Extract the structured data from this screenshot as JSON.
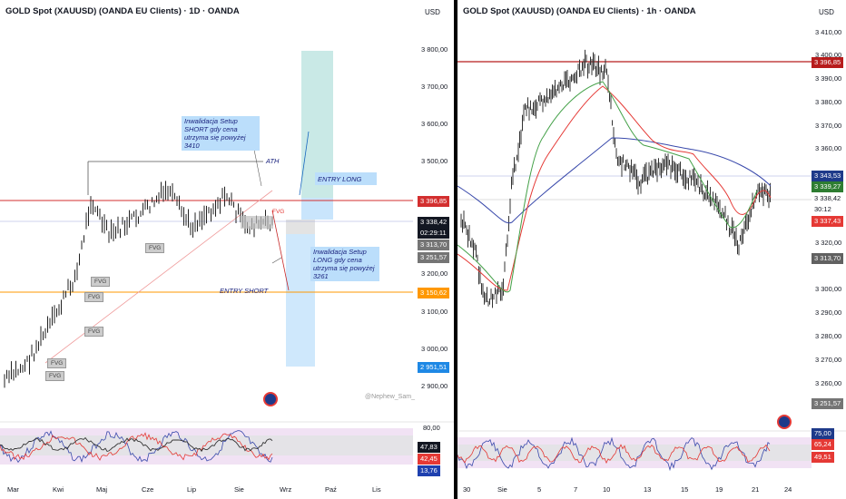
{
  "left": {
    "title": "GOLD Spot (XAUUSD) (OANDA EU Clients) · 1D · OANDA",
    "currency": "USD",
    "y_ticks": [
      "3 800,00",
      "3 700,00",
      "3 600,00",
      "3 500,00",
      "3 200,00",
      "3 100,00",
      "3 000,00",
      "2 900,00"
    ],
    "price_tags": {
      "red": "3 396,85",
      "last": "3 338,42",
      "countdown": "02:29:11",
      "gray1": "3 313,70",
      "gray2": "3 251,57",
      "orange": "3 150,62",
      "blue": "2 951,51"
    },
    "osc_ticks": {
      "top": "80,00",
      "v1": "47,83",
      "v2": "42,45",
      "v3": "13,76"
    },
    "x_ticks": [
      "Mar",
      "Kwi",
      "Maj",
      "Cze",
      "Lip",
      "Sie",
      "Wrz",
      "Paź",
      "Lis"
    ],
    "annotations": {
      "short_invalid": "Inwalidacja Setup SHORT gdy cena utrzyma się powyżej 3410",
      "long_invalid": "Inwalidacja Setup LONG gdy cena utrzyma się powyżej 3261",
      "ath": "ATH",
      "entry_long": "ENTRY LONG",
      "entry_short": "ENTRY SHORT",
      "fvg": "FVG",
      "watermark": "@Nephew_Sam_"
    }
  },
  "right": {
    "title": "GOLD Spot (XAUUSD) (OANDA EU Clients) · 1h · OANDA",
    "currency": "USD",
    "y_ticks": [
      "3 410,00",
      "3 400,00",
      "3 390,00",
      "3 380,00",
      "3 370,00",
      "3 360,00",
      "3 320,00",
      "3 300,00",
      "3 290,00",
      "3 280,00",
      "3 270,00",
      "3 260,00"
    ],
    "price_tags": {
      "red": "3 396,85",
      "blue": "3 343,53",
      "green": "3 339,27",
      "last": "3 338,42",
      "countdown": "30:12",
      "red2": "3 337,43",
      "gray": "3 313,70",
      "gray2": "3 251,57"
    },
    "osc_ticks": {
      "v1": "75,00",
      "v2": "65,24",
      "v3": "49,51"
    },
    "x_ticks": [
      "30",
      "Sie",
      "5",
      "7",
      "10",
      "13",
      "15",
      "19",
      "21",
      "24"
    ]
  },
  "colors": {
    "red": "#d32f2f",
    "orange": "#ff9800",
    "blue_zone": "#bbdefb",
    "green_zone": "#b2dfdb",
    "ma_red": "#e53935",
    "ma_green": "#43a047",
    "ma_blue": "#3949ab"
  }
}
